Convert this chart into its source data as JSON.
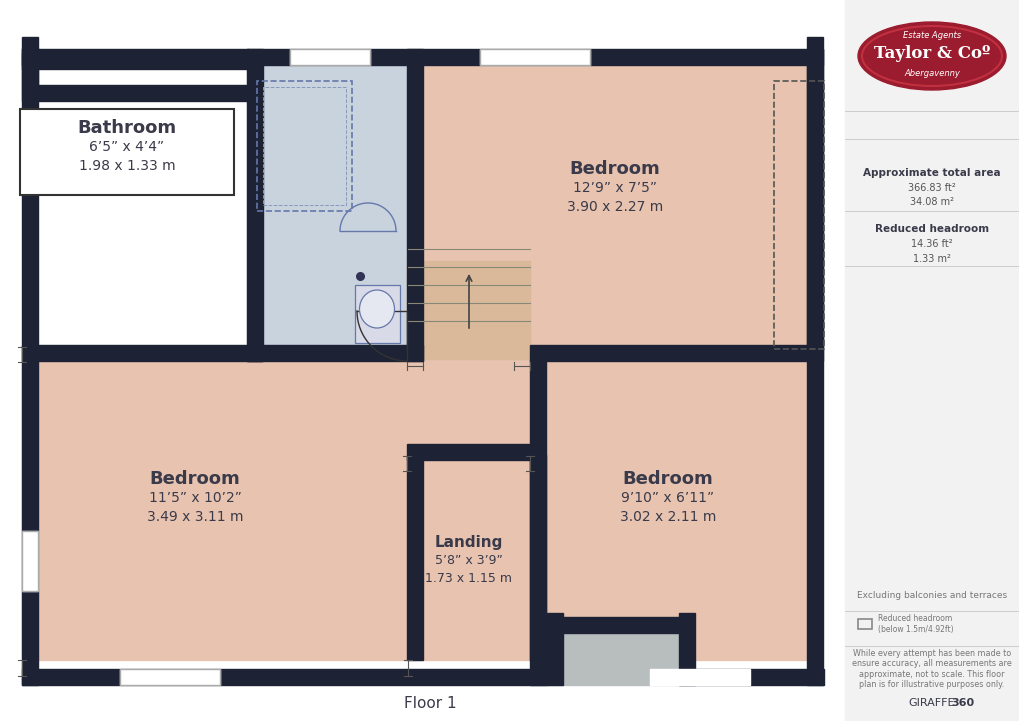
{
  "title": "Floor 1",
  "bg": "#ffffff",
  "wall": "#1e2235",
  "salmon": "#e8c4b0",
  "blue_gray": "#c8d3de",
  "gray": "#b8bebe",
  "sidebar_bg": "#f2f2f2",
  "logo_red": "#9b1c2e",
  "text_dark": "#3a3a4a",
  "text_mid": "#555555",
  "text_light": "#777777",
  "logo_main": "Taylor & Coº",
  "logo_top": "Estate Agents",
  "logo_bot": "Abergavenny",
  "area_label": "Approximate total area",
  "area_ft": "366.83 ft²",
  "area_m": "34.08 m²",
  "rh_label": "Reduced headroom",
  "rh_ft": "14.36 ft²",
  "rh_m": "1.33 m²",
  "excl": "Excluding balconies and terraces",
  "rh_note": "Reduced headroom\n(below 1.5m/4.92ft)",
  "disclaimer": "While every attempt has been made to\nensure accuracy, all measurements are\napproximate, not to scale. This floor\nplan is for illustrative purposes only.",
  "giraffe": "GIRAFFE360",
  "floor_label": "Floor 1"
}
